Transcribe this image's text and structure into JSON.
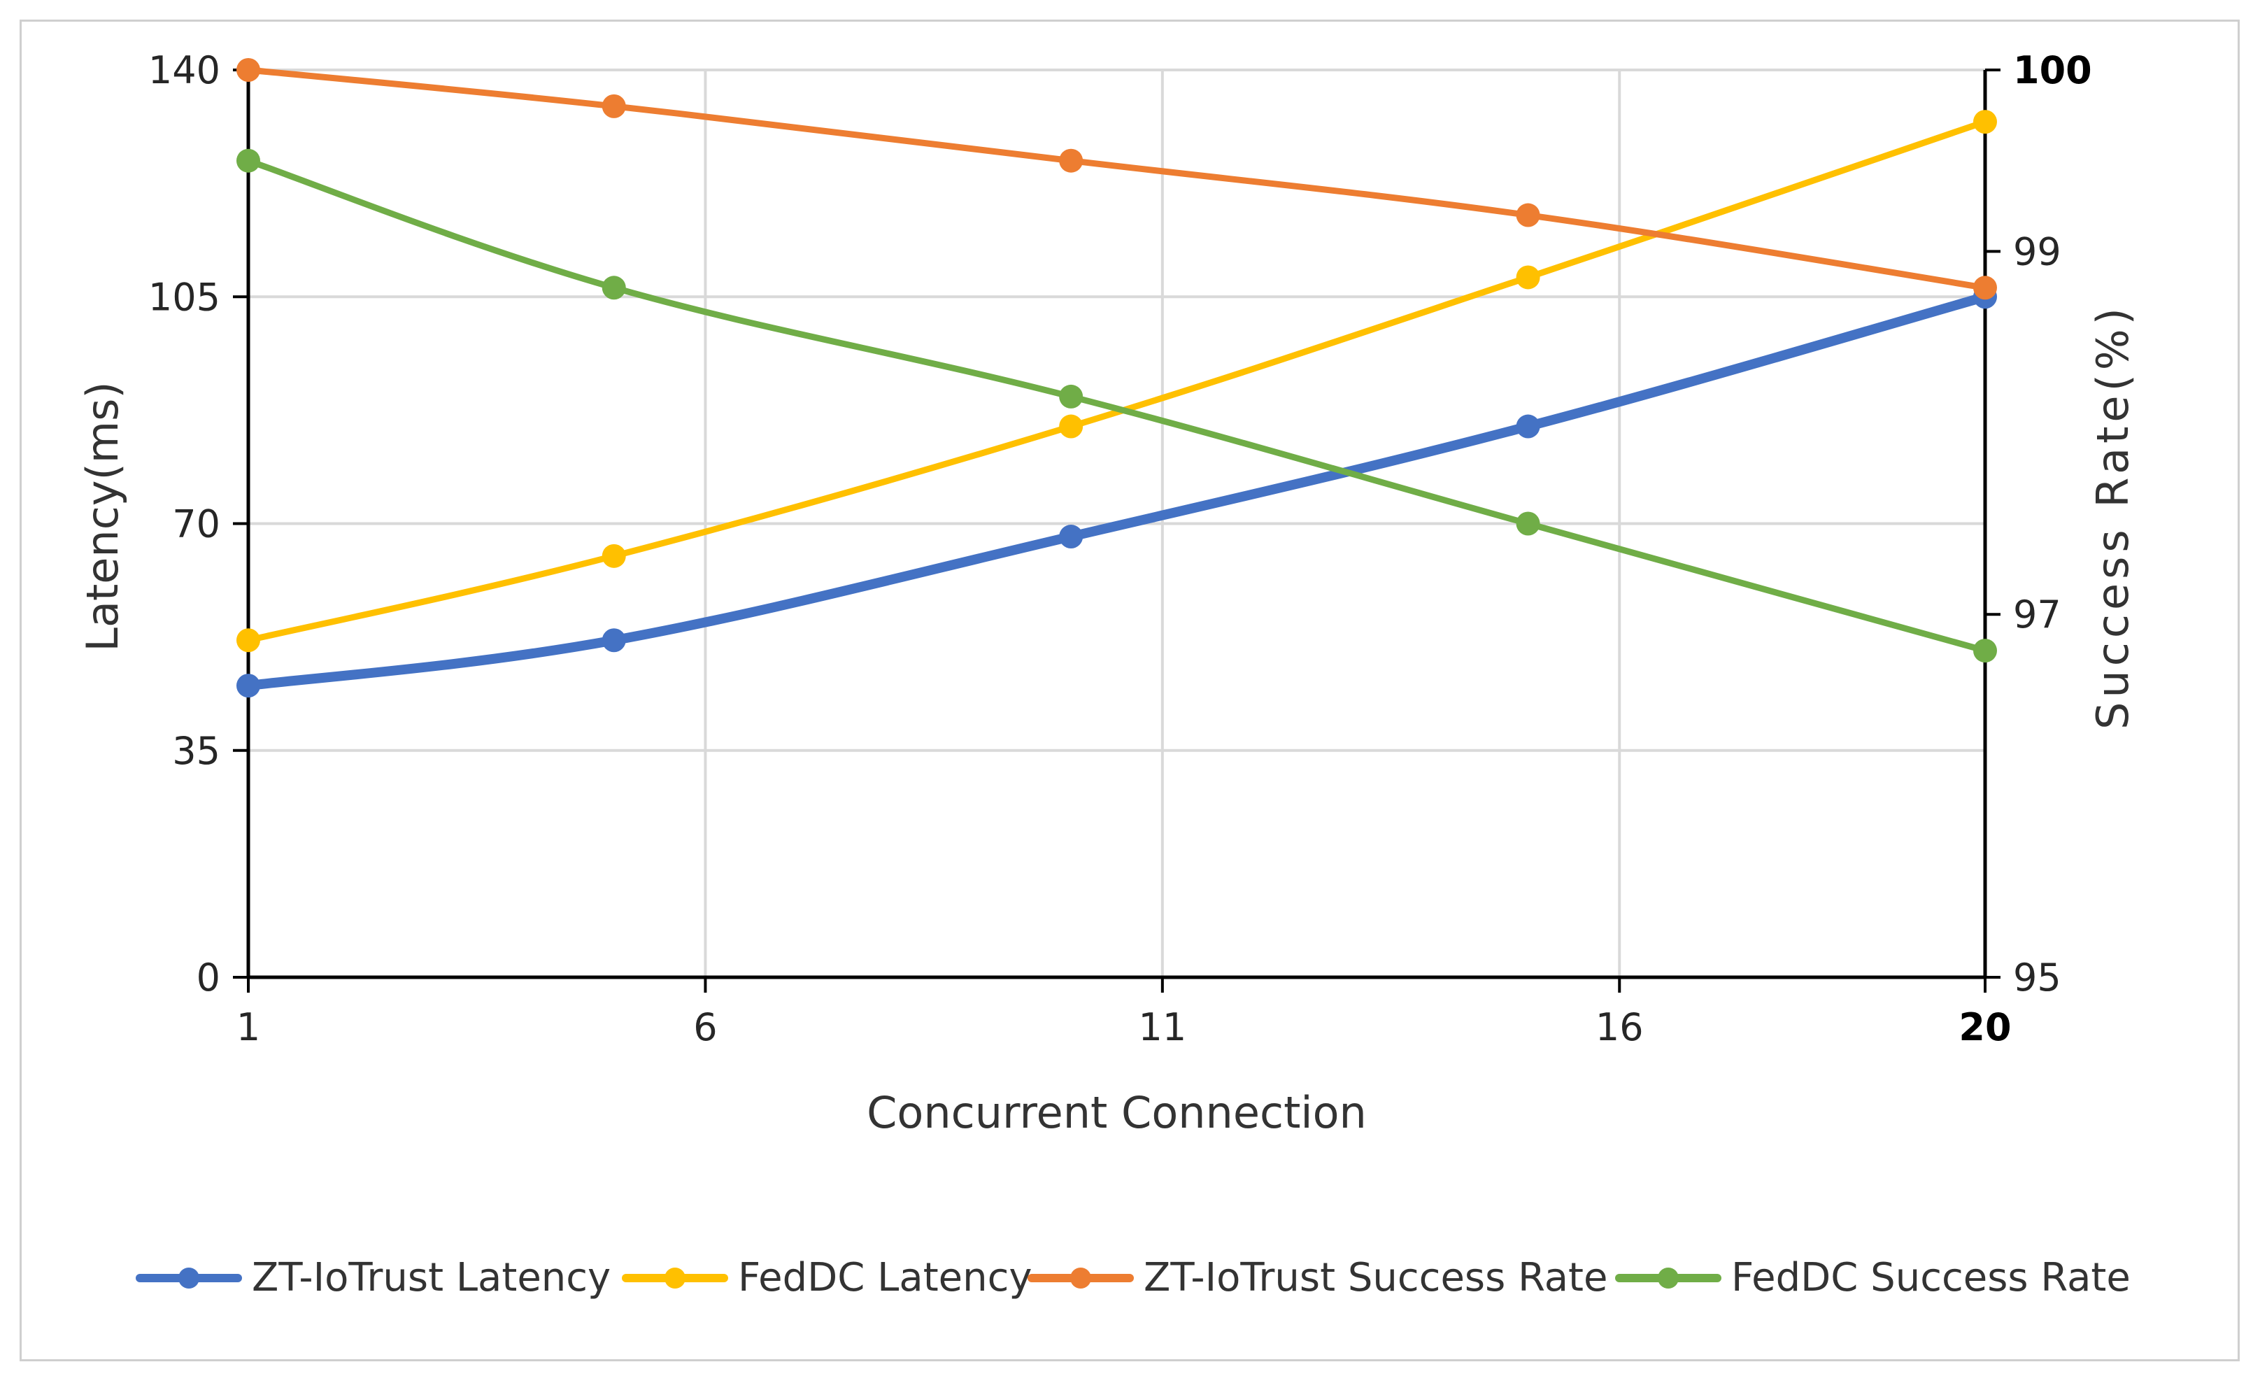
{
  "chart_data": {
    "type": "line",
    "title": "",
    "xlabel": "Concurrent Connection",
    "ylabel": "Latency(ms)",
    "y2label": "Success Rate(%)",
    "x": [
      1,
      5,
      10,
      15,
      20
    ],
    "xticks": [
      "1",
      "6",
      "11",
      "16",
      "20"
    ],
    "xlim": [
      1,
      20
    ],
    "ylim": [
      0,
      140
    ],
    "yticks": [
      "0",
      "35",
      "70",
      "105",
      "140"
    ],
    "y2lim": [
      95,
      100
    ],
    "y2ticks": [
      "95",
      "97",
      "99",
      "100"
    ],
    "grid": true,
    "legend_position": "bottom",
    "series": [
      {
        "name": "ZT-IoTrust Latency",
        "axis": "left",
        "color": "#4472c4",
        "values": [
          45,
          52,
          68,
          85,
          105
        ]
      },
      {
        "name": "FedDC Latency",
        "axis": "left",
        "color": "#ffc000",
        "values": [
          52,
          65,
          85,
          108,
          132
        ]
      },
      {
        "name": "ZT-IoTrust Success Rate",
        "axis": "right",
        "color": "#ed7d31",
        "values": [
          100,
          99.8,
          99.5,
          99.2,
          98.8
        ]
      },
      {
        "name": "FedDC Success Rate",
        "axis": "right",
        "color": "#70ad47",
        "values": [
          99.5,
          98.8,
          98.2,
          97.5,
          96.8
        ]
      }
    ]
  }
}
